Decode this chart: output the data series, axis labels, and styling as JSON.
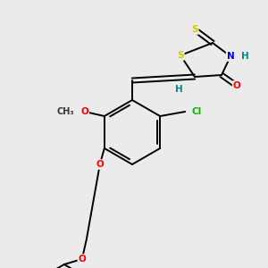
{
  "bg_color": "#ebebeb",
  "figsize": [
    3.0,
    3.0
  ],
  "dpi": 100,
  "colors": {
    "S": "#cccc00",
    "N": "#0000ff",
    "O": "#ff0000",
    "Cl": "#00bb00",
    "H": "#008888",
    "C": "#000000",
    "bond": "#000000"
  },
  "lw": 1.4
}
